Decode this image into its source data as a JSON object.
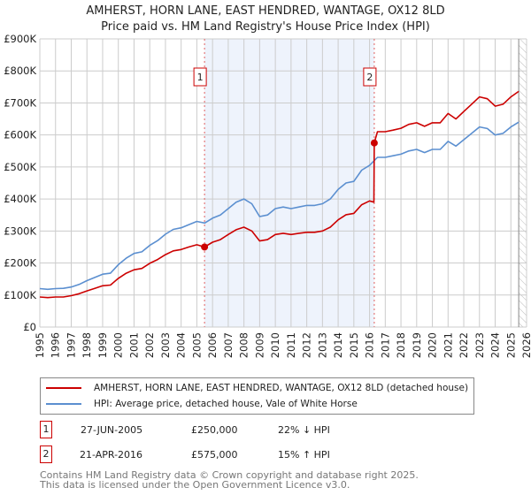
{
  "title": "AMHERST, HORN LANE, EAST HENDRED, WANTAGE, OX12 8LD",
  "subtitle": "Price paid vs. HM Land Registry's House Price Index (HPI)",
  "colors": {
    "price": "#cc0000",
    "hpi": "#5b8fd0",
    "shade": "#eef3fc"
  },
  "chart_data": {
    "type": "line",
    "title": "Price paid vs. HM Land Registry's House Price Index (HPI)",
    "xlim": [
      1995,
      2026
    ],
    "ylim": [
      0,
      900000
    ],
    "grid": true,
    "y_ticks": [
      {
        "v": 0,
        "label": "£0"
      },
      {
        "v": 100000,
        "label": "£100K"
      },
      {
        "v": 200000,
        "label": "£200K"
      },
      {
        "v": 300000,
        "label": "£300K"
      },
      {
        "v": 400000,
        "label": "£400K"
      },
      {
        "v": 500000,
        "label": "£500K"
      },
      {
        "v": 600000,
        "label": "£600K"
      },
      {
        "v": 700000,
        "label": "£700K"
      },
      {
        "v": 800000,
        "label": "£800K"
      },
      {
        "v": 900000,
        "label": "£900K"
      }
    ],
    "x_ticks": [
      "1995",
      "1996",
      "1997",
      "1998",
      "1999",
      "2000",
      "2001",
      "2002",
      "2003",
      "2004",
      "2005",
      "2006",
      "2007",
      "2008",
      "2009",
      "2010",
      "2011",
      "2012",
      "2013",
      "2014",
      "2015",
      "2016",
      "2017",
      "2018",
      "2019",
      "2020",
      "2021",
      "2022",
      "2023",
      "2024",
      "2025",
      "2026"
    ],
    "shaded_period": [
      2005.49,
      2016.3
    ],
    "forecast_hatch_from": 2025.5,
    "series": [
      {
        "name": "AMHERST, HORN LANE, EAST HENDRED, WANTAGE, OX12 8LD (detached house)",
        "color": "#cc0000",
        "x": [
          1995,
          1995.5,
          1996,
          1996.5,
          1997,
          1997.5,
          1998,
          1998.5,
          1999,
          1999.5,
          2000,
          2000.5,
          2001,
          2001.5,
          2002,
          2002.5,
          2003,
          2003.5,
          2004,
          2004.5,
          2005,
          2005.49,
          2006,
          2006.5,
          2007,
          2007.5,
          2008,
          2008.5,
          2009,
          2009.5,
          2010,
          2010.5,
          2011,
          2011.5,
          2012,
          2012.5,
          2013,
          2013.5,
          2014,
          2014.5,
          2015,
          2015.5,
          2016,
          2016.28,
          2016.3,
          2016.5,
          2017,
          2017.5,
          2018,
          2018.5,
          2019,
          2019.5,
          2020,
          2020.5,
          2021,
          2021.5,
          2022,
          2022.5,
          2023,
          2023.5,
          2024,
          2024.5,
          2025,
          2025.5
        ],
        "y": [
          94,
          92,
          94,
          94,
          98,
          104,
          113,
          121,
          129,
          131,
          152,
          168,
          179,
          183,
          199,
          211,
          226,
          238,
          242,
          250,
          257,
          250,
          265,
          273,
          289,
          304,
          312,
          300,
          269,
          273,
          289,
          293,
          289,
          293,
          296,
          296,
          300,
          312,
          335,
          351,
          355,
          382,
          394,
          390,
          575,
          610,
          610,
          615,
          621,
          633,
          638,
          627,
          638,
          638,
          667,
          650,
          673,
          696,
          719,
          713,
          690,
          696,
          719,
          736
        ]
      },
      {
        "name": "HPI: Average price, detached house, Vale of White Horse",
        "color": "#5b8fd0",
        "x": [
          1995,
          1995.5,
          1996,
          1996.5,
          1997,
          1997.5,
          1998,
          1998.5,
          1999,
          1999.5,
          2000,
          2000.5,
          2001,
          2001.5,
          2002,
          2002.5,
          2003,
          2003.5,
          2004,
          2004.5,
          2005,
          2005.5,
          2006,
          2006.5,
          2007,
          2007.5,
          2008,
          2008.5,
          2009,
          2009.5,
          2010,
          2010.5,
          2011,
          2011.5,
          2012,
          2012.5,
          2013,
          2013.5,
          2014,
          2014.5,
          2015,
          2015.5,
          2016,
          2016.5,
          2017,
          2017.5,
          2018,
          2018.5,
          2019,
          2019.5,
          2020,
          2020.5,
          2021,
          2021.5,
          2022,
          2022.5,
          2023,
          2023.5,
          2024,
          2024.5,
          2025,
          2025.5
        ],
        "y": [
          120,
          118,
          120,
          121,
          125,
          133,
          145,
          155,
          165,
          168,
          195,
          215,
          230,
          235,
          255,
          270,
          290,
          305,
          310,
          320,
          330,
          325,
          340,
          350,
          370,
          390,
          400,
          385,
          345,
          350,
          370,
          375,
          370,
          375,
          380,
          380,
          385,
          400,
          430,
          450,
          455,
          490,
          505,
          530,
          530,
          535,
          540,
          550,
          555,
          545,
          555,
          555,
          580,
          565,
          585,
          605,
          625,
          620,
          600,
          605,
          625,
          640
        ]
      }
    ],
    "y_unit": "thousands GBP",
    "annotations": [
      {
        "label": "1",
        "x": 2005.49,
        "y": 250
      },
      {
        "label": "2",
        "x": 2016.3,
        "y": 575
      }
    ]
  },
  "legend": {
    "price_label": "AMHERST, HORN LANE, EAST HENDRED, WANTAGE, OX12 8LD (detached house)",
    "hpi_label": "HPI: Average price, detached house, Vale of White Horse"
  },
  "sales": [
    {
      "num": "1",
      "date": "27-JUN-2005",
      "price": "£250,000",
      "hpi": "22% ↓ HPI"
    },
    {
      "num": "2",
      "date": "21-APR-2016",
      "price": "£575,000",
      "hpi": "15% ↑ HPI"
    }
  ],
  "footer": {
    "line1": "Contains HM Land Registry data © Crown copyright and database right 2025.",
    "line2": "This data is licensed under the Open Government Licence v3.0."
  }
}
